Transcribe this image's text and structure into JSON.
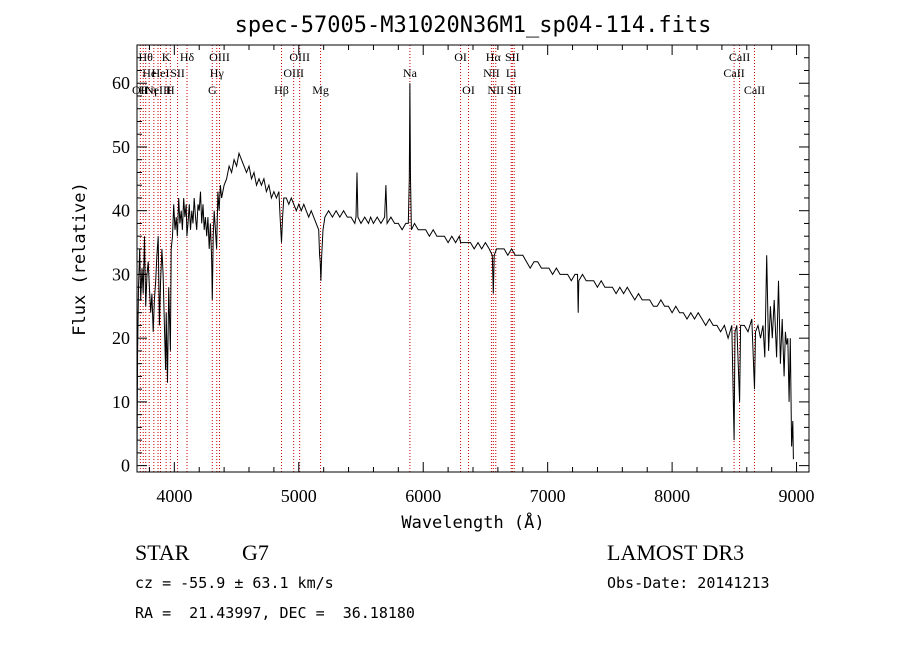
{
  "chart_data": {
    "type": "line",
    "title": "spec-57005-M31020N36M1_sp04-114.fits",
    "xlabel": "Wavelength (Å)",
    "ylabel": "Flux (relative)",
    "xlim": [
      3700,
      9100
    ],
    "ylim": [
      -1,
      66
    ],
    "xticks": [
      4000,
      5000,
      6000,
      7000,
      8000,
      9000
    ],
    "yticks": [
      0,
      10,
      20,
      30,
      40,
      50,
      60
    ],
    "series": [
      {
        "name": "spectrum",
        "points": [
          [
            3700,
            0
          ],
          [
            3705,
            18
          ],
          [
            3712,
            28
          ],
          [
            3722,
            34
          ],
          [
            3730,
            26
          ],
          [
            3740,
            31
          ],
          [
            3750,
            27
          ],
          [
            3760,
            36
          ],
          [
            3770,
            25
          ],
          [
            3780,
            30
          ],
          [
            3790,
            32
          ],
          [
            3800,
            28
          ],
          [
            3810,
            24
          ],
          [
            3820,
            27
          ],
          [
            3830,
            21
          ],
          [
            3840,
            26
          ],
          [
            3850,
            29
          ],
          [
            3860,
            33
          ],
          [
            3870,
            36
          ],
          [
            3880,
            22
          ],
          [
            3890,
            29
          ],
          [
            3900,
            34
          ],
          [
            3910,
            30
          ],
          [
            3920,
            22
          ],
          [
            3930,
            15
          ],
          [
            3935,
            24
          ],
          [
            3945,
            13
          ],
          [
            3955,
            28
          ],
          [
            3968,
            18
          ],
          [
            3975,
            34
          ],
          [
            3985,
            36
          ],
          [
            3995,
            41
          ],
          [
            4005,
            37
          ],
          [
            4015,
            39
          ],
          [
            4025,
            36
          ],
          [
            4035,
            42
          ],
          [
            4045,
            38
          ],
          [
            4055,
            40
          ],
          [
            4065,
            37
          ],
          [
            4075,
            42
          ],
          [
            4085,
            39
          ],
          [
            4095,
            41
          ],
          [
            4101,
            36
          ],
          [
            4110,
            38
          ],
          [
            4120,
            41
          ],
          [
            4130,
            37
          ],
          [
            4140,
            40
          ],
          [
            4150,
            38
          ],
          [
            4160,
            42
          ],
          [
            4170,
            39
          ],
          [
            4180,
            37
          ],
          [
            4190,
            41
          ],
          [
            4200,
            40
          ],
          [
            4210,
            43
          ],
          [
            4220,
            38
          ],
          [
            4230,
            41
          ],
          [
            4240,
            37
          ],
          [
            4250,
            39
          ],
          [
            4260,
            36
          ],
          [
            4270,
            39
          ],
          [
            4280,
            34
          ],
          [
            4290,
            38
          ],
          [
            4300,
            32
          ],
          [
            4305,
            26
          ],
          [
            4312,
            36
          ],
          [
            4320,
            40
          ],
          [
            4330,
            37
          ],
          [
            4340,
            34
          ],
          [
            4350,
            43
          ],
          [
            4360,
            40
          ],
          [
            4370,
            44
          ],
          [
            4380,
            42
          ],
          [
            4400,
            44
          ],
          [
            4420,
            45
          ],
          [
            4440,
            47
          ],
          [
            4460,
            46
          ],
          [
            4480,
            48
          ],
          [
            4500,
            47
          ],
          [
            4520,
            49
          ],
          [
            4540,
            48
          ],
          [
            4560,
            47
          ],
          [
            4580,
            46
          ],
          [
            4600,
            47
          ],
          [
            4620,
            45
          ],
          [
            4640,
            46
          ],
          [
            4660,
            44
          ],
          [
            4680,
            45
          ],
          [
            4700,
            44
          ],
          [
            4720,
            45
          ],
          [
            4740,
            43
          ],
          [
            4760,
            44
          ],
          [
            4780,
            42
          ],
          [
            4800,
            43
          ],
          [
            4820,
            42
          ],
          [
            4840,
            43
          ],
          [
            4850,
            39
          ],
          [
            4861,
            35
          ],
          [
            4870,
            39
          ],
          [
            4880,
            42
          ],
          [
            4900,
            42
          ],
          [
            4920,
            41
          ],
          [
            4940,
            42
          ],
          [
            4960,
            41
          ],
          [
            4980,
            40
          ],
          [
            5000,
            41
          ],
          [
            5020,
            40
          ],
          [
            5040,
            41
          ],
          [
            5060,
            40
          ],
          [
            5080,
            39
          ],
          [
            5100,
            40
          ],
          [
            5120,
            39
          ],
          [
            5140,
            38
          ],
          [
            5160,
            37
          ],
          [
            5167,
            33
          ],
          [
            5172,
            32
          ],
          [
            5178,
            29
          ],
          [
            5184,
            33
          ],
          [
            5195,
            37
          ],
          [
            5210,
            39
          ],
          [
            5240,
            40
          ],
          [
            5270,
            39
          ],
          [
            5300,
            40
          ],
          [
            5330,
            39
          ],
          [
            5360,
            40
          ],
          [
            5390,
            39
          ],
          [
            5420,
            39
          ],
          [
            5450,
            38
          ],
          [
            5460,
            39
          ],
          [
            5468,
            46
          ],
          [
            5475,
            39
          ],
          [
            5500,
            38
          ],
          [
            5530,
            39
          ],
          [
            5560,
            38
          ],
          [
            5577,
            39
          ],
          [
            5600,
            38
          ],
          [
            5630,
            39
          ],
          [
            5660,
            38
          ],
          [
            5690,
            39
          ],
          [
            5700,
            44
          ],
          [
            5710,
            38
          ],
          [
            5740,
            39
          ],
          [
            5770,
            38
          ],
          [
            5800,
            38
          ],
          [
            5830,
            37
          ],
          [
            5860,
            38
          ],
          [
            5880,
            38
          ],
          [
            5888,
            45
          ],
          [
            5893,
            60
          ],
          [
            5898,
            45
          ],
          [
            5905,
            37
          ],
          [
            5930,
            38
          ],
          [
            5960,
            37
          ],
          [
            5990,
            37
          ],
          [
            6020,
            37
          ],
          [
            6050,
            36
          ],
          [
            6080,
            37
          ],
          [
            6110,
            36
          ],
          [
            6140,
            36
          ],
          [
            6170,
            36
          ],
          [
            6200,
            35
          ],
          [
            6230,
            36
          ],
          [
            6260,
            35
          ],
          [
            6290,
            36
          ],
          [
            6300,
            35
          ],
          [
            6320,
            35
          ],
          [
            6350,
            35
          ],
          [
            6380,
            35
          ],
          [
            6410,
            34
          ],
          [
            6440,
            35
          ],
          [
            6470,
            34
          ],
          [
            6500,
            35
          ],
          [
            6530,
            34
          ],
          [
            6555,
            33
          ],
          [
            6563,
            27
          ],
          [
            6570,
            33
          ],
          [
            6590,
            34
          ],
          [
            6620,
            34
          ],
          [
            6650,
            34
          ],
          [
            6680,
            33
          ],
          [
            6710,
            34
          ],
          [
            6740,
            33
          ],
          [
            6770,
            33
          ],
          [
            6800,
            33
          ],
          [
            6830,
            32
          ],
          [
            6860,
            31
          ],
          [
            6890,
            32
          ],
          [
            6920,
            32
          ],
          [
            6950,
            31
          ],
          [
            6980,
            31
          ],
          [
            7010,
            31
          ],
          [
            7040,
            30
          ],
          [
            7070,
            31
          ],
          [
            7100,
            30
          ],
          [
            7130,
            30
          ],
          [
            7160,
            30
          ],
          [
            7190,
            29
          ],
          [
            7220,
            30
          ],
          [
            7240,
            30
          ],
          [
            7245,
            24
          ],
          [
            7250,
            29
          ],
          [
            7280,
            30
          ],
          [
            7310,
            29
          ],
          [
            7340,
            29
          ],
          [
            7370,
            29
          ],
          [
            7400,
            28
          ],
          [
            7430,
            29
          ],
          [
            7460,
            28
          ],
          [
            7490,
            28
          ],
          [
            7520,
            28
          ],
          [
            7550,
            27
          ],
          [
            7580,
            28
          ],
          [
            7610,
            27
          ],
          [
            7640,
            28
          ],
          [
            7670,
            27
          ],
          [
            7700,
            26
          ],
          [
            7730,
            27
          ],
          [
            7760,
            26
          ],
          [
            7790,
            26
          ],
          [
            7820,
            26
          ],
          [
            7850,
            25
          ],
          [
            7880,
            25
          ],
          [
            7910,
            26
          ],
          [
            7940,
            25
          ],
          [
            7970,
            25
          ],
          [
            8000,
            24
          ],
          [
            8030,
            25
          ],
          [
            8060,
            24
          ],
          [
            8090,
            24
          ],
          [
            8120,
            23
          ],
          [
            8150,
            24
          ],
          [
            8180,
            23
          ],
          [
            8210,
            24
          ],
          [
            8240,
            23
          ],
          [
            8270,
            22
          ],
          [
            8300,
            23
          ],
          [
            8330,
            22
          ],
          [
            8360,
            22
          ],
          [
            8390,
            21
          ],
          [
            8420,
            22
          ],
          [
            8450,
            20
          ],
          [
            8480,
            22
          ],
          [
            8498,
            4
          ],
          [
            8505,
            21
          ],
          [
            8520,
            22
          ],
          [
            8542,
            10
          ],
          [
            8550,
            22
          ],
          [
            8580,
            22
          ],
          [
            8610,
            21
          ],
          [
            8640,
            23
          ],
          [
            8662,
            12
          ],
          [
            8670,
            21
          ],
          [
            8690,
            22
          ],
          [
            8710,
            20
          ],
          [
            8730,
            22
          ],
          [
            8745,
            17
          ],
          [
            8760,
            33
          ],
          [
            8775,
            18
          ],
          [
            8790,
            25
          ],
          [
            8805,
            20
          ],
          [
            8820,
            26
          ],
          [
            8840,
            17
          ],
          [
            8855,
            29
          ],
          [
            8870,
            16
          ],
          [
            8885,
            23
          ],
          [
            8900,
            14
          ],
          [
            8910,
            21
          ],
          [
            8920,
            19
          ],
          [
            8930,
            20
          ],
          [
            8940,
            10
          ],
          [
            8950,
            20
          ],
          [
            8960,
            3
          ],
          [
            8970,
            7
          ],
          [
            8975,
            1
          ]
        ]
      }
    ],
    "lines": [
      {
        "x": 3727,
        "row": 2,
        "label": "OII"
      },
      {
        "x": 3750,
        "row": 2,
        "label": "H"
      },
      {
        "x": 3770,
        "row": 0,
        "label": "Hθ"
      },
      {
        "x": 3798,
        "row": 1,
        "label": "He"
      },
      {
        "x": 3835,
        "row": 2,
        "label": "η"
      },
      {
        "x": 3869,
        "row": 2,
        "label": "NeIII"
      },
      {
        "x": 3889,
        "row": 1,
        "label": "HeI"
      },
      {
        "x": 3934,
        "row": 0,
        "label": "K"
      },
      {
        "x": 3968,
        "row": 2,
        "label": "H"
      },
      {
        "x": 4026,
        "row": 1,
        "label": "SII"
      },
      {
        "x": 4102,
        "row": 0,
        "label": "Hδ"
      },
      {
        "x": 4305,
        "row": 2,
        "label": "G"
      },
      {
        "x": 4341,
        "row": 1,
        "label": "Hγ"
      },
      {
        "x": 4363,
        "row": 0,
        "label": "OIII"
      },
      {
        "x": 4861,
        "row": 2,
        "label": "Hβ"
      },
      {
        "x": 4959,
        "row": 1,
        "label": "OIII"
      },
      {
        "x": 5007,
        "row": 0,
        "label": "OIII"
      },
      {
        "x": 5175,
        "row": 2,
        "label": "Mg"
      },
      {
        "x": 5893,
        "row": 1,
        "label": "Na"
      },
      {
        "x": 6300,
        "row": 0,
        "label": "OI"
      },
      {
        "x": 6364,
        "row": 2,
        "label": "OI"
      },
      {
        "x": 6548,
        "row": 1,
        "label": "NII"
      },
      {
        "x": 6563,
        "row": 0,
        "label": "Hα"
      },
      {
        "x": 6583,
        "row": 2,
        "label": "NII"
      },
      {
        "x": 6707,
        "row": 1,
        "label": "Li"
      },
      {
        "x": 6716,
        "row": 0,
        "label": "SII"
      },
      {
        "x": 6731,
        "row": 2,
        "label": "SII"
      },
      {
        "x": 8498,
        "row": 1,
        "label": "CaII"
      },
      {
        "x": 8542,
        "row": 0,
        "label": "CaII"
      },
      {
        "x": 8662,
        "row": 2,
        "label": "CaII"
      }
    ]
  },
  "info": {
    "class": "STAR",
    "subclass": "G7",
    "survey": "LAMOST DR3",
    "redshift": "cz = -55.9 ± 63.1 km/s",
    "obs_date": "Obs-Date: 20141213",
    "coords": "RA =  21.43997, DEC =  36.18180"
  },
  "colors": {
    "line_marker": "#cc0000",
    "spectrum": "#000000",
    "axes": "#000000"
  }
}
